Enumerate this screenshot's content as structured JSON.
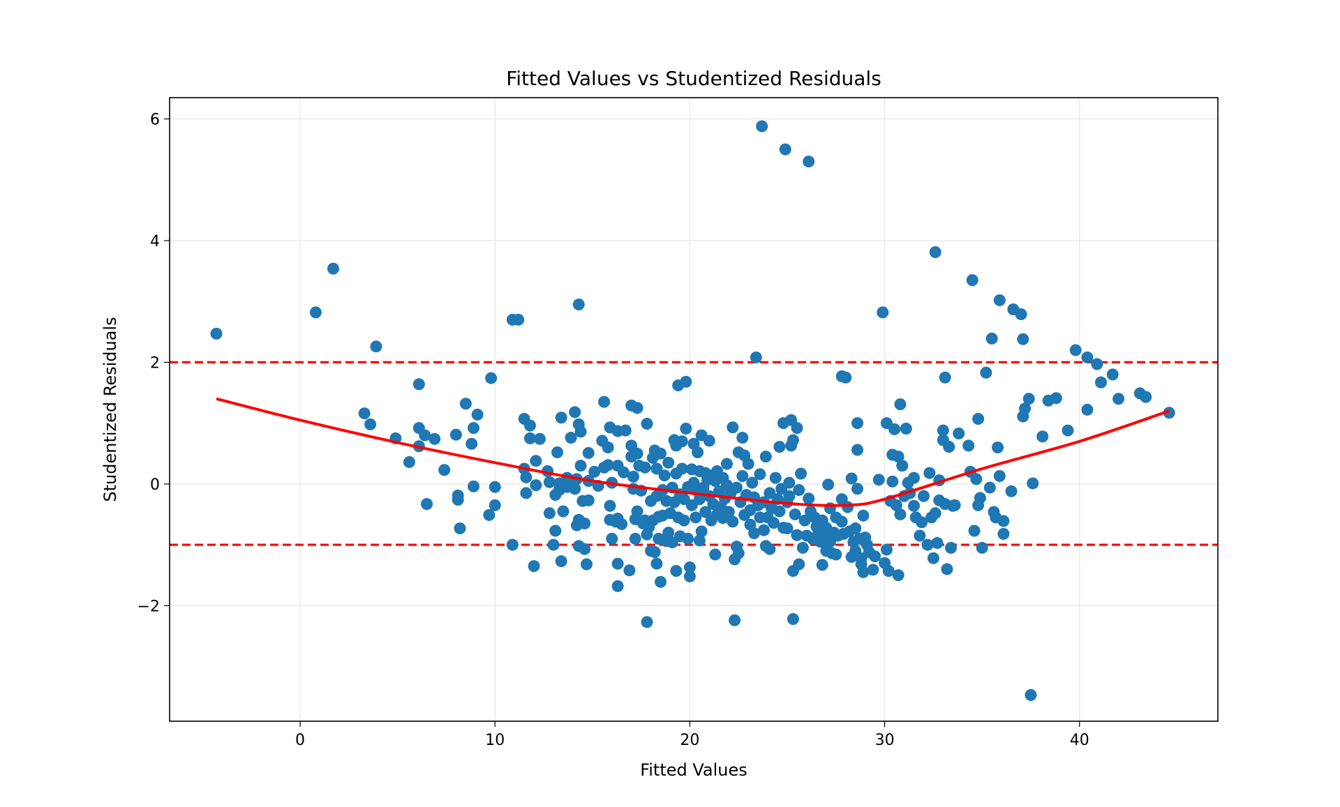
{
  "chart_data": {
    "type": "scatter",
    "title": "Fitted Values vs Studentized Residuals",
    "xlabel": "Fitted Values",
    "ylabel": "Studentized Residuals",
    "xlim": [
      -6.7,
      47.1
    ],
    "ylim": [
      -3.9,
      6.35
    ],
    "x_ticks": [
      0,
      10,
      20,
      30,
      40
    ],
    "y_ticks": [
      -2,
      0,
      2,
      4,
      6
    ],
    "x_tick_labels": [
      "0",
      "10",
      "20",
      "30",
      "40"
    ],
    "y_tick_labels": [
      "−2",
      "0",
      "2",
      "4",
      "6"
    ],
    "grid": true,
    "colors": {
      "points": "#1f77b4",
      "trend": "#ff0000",
      "reference": "#ff0000",
      "grid": "#e6e6e6"
    },
    "reference_lines": [
      {
        "axis": "y",
        "value": 2,
        "style": "dashed"
      },
      {
        "axis": "y",
        "value": -1,
        "style": "dashed"
      }
    ],
    "trend_line": {
      "x": [
        -4.3,
        0,
        5,
        10,
        15,
        20,
        25,
        28,
        30,
        35,
        40,
        44.6
      ],
      "y": [
        1.4,
        1.05,
        0.68,
        0.35,
        0.05,
        -0.15,
        -0.32,
        -0.35,
        -0.25,
        0.25,
        0.7,
        1.2
      ]
    },
    "points": [
      [
        -4.3,
        2.47
      ],
      [
        0.8,
        2.82
      ],
      [
        1.7,
        3.54
      ],
      [
        3.9,
        2.26
      ],
      [
        3.3,
        1.16
      ],
      [
        3.6,
        0.98
      ],
      [
        4.9,
        0.75
      ],
      [
        5.6,
        0.36
      ],
      [
        6.1,
        1.64
      ],
      [
        6.1,
        0.92
      ],
      [
        6.1,
        0.62
      ],
      [
        6.4,
        0.8
      ],
      [
        6.5,
        -0.33
      ],
      [
        6.9,
        0.74
      ],
      [
        7.4,
        0.23
      ],
      [
        8.0,
        0.81
      ],
      [
        8.1,
        -0.19
      ],
      [
        8.1,
        -0.26
      ],
      [
        8.2,
        -0.73
      ],
      [
        8.5,
        1.32
      ],
      [
        8.8,
        0.66
      ],
      [
        8.9,
        0.92
      ],
      [
        8.9,
        -0.04
      ],
      [
        9.1,
        1.14
      ],
      [
        9.7,
        -0.51
      ],
      [
        9.8,
        1.74
      ],
      [
        10.0,
        -0.05
      ],
      [
        10.0,
        -0.35
      ],
      [
        10.9,
        2.7
      ],
      [
        11.2,
        2.7
      ],
      [
        10.9,
        -1.0
      ],
      [
        11.5,
        1.07
      ],
      [
        11.5,
        0.25
      ],
      [
        11.6,
        0.11
      ],
      [
        11.6,
        -0.15
      ],
      [
        11.8,
        0.96
      ],
      [
        11.8,
        0.75
      ],
      [
        12.0,
        -1.35
      ],
      [
        12.1,
        0.38
      ],
      [
        12.1,
        -0.02
      ],
      [
        12.3,
        0.74
      ],
      [
        12.7,
        0.21
      ],
      [
        12.8,
        0.03
      ],
      [
        12.8,
        -0.48
      ],
      [
        13.0,
        -1.0
      ],
      [
        13.1,
        -0.77
      ],
      [
        13.2,
        0.52
      ],
      [
        13.1,
        -0.18
      ],
      [
        13.3,
        0.01
      ],
      [
        13.3,
        -0.1
      ],
      [
        13.4,
        1.09
      ],
      [
        13.4,
        -1.27
      ],
      [
        13.5,
        -0.45
      ],
      [
        13.7,
        -0.05
      ],
      [
        13.7,
        0.1
      ],
      [
        13.9,
        0.06
      ],
      [
        13.9,
        0.76
      ],
      [
        14.1,
        1.18
      ],
      [
        14.1,
        -0.08
      ],
      [
        14.2,
        0.08
      ],
      [
        14.2,
        -0.68
      ],
      [
        14.3,
        2.95
      ],
      [
        14.3,
        -0.59
      ],
      [
        14.3,
        0.98
      ],
      [
        14.3,
        -1.02
      ],
      [
        14.4,
        0.3
      ],
      [
        14.4,
        0.86
      ],
      [
        14.5,
        -0.28
      ],
      [
        14.6,
        -0.65
      ],
      [
        14.6,
        -1.07
      ],
      [
        14.7,
        -1.32
      ],
      [
        14.8,
        -0.27
      ],
      [
        14.8,
        0.51
      ],
      [
        14.8,
        0.05
      ],
      [
        15.1,
        0.2
      ],
      [
        15.3,
        -0.03
      ],
      [
        15.5,
        0.71
      ],
      [
        15.6,
        1.35
      ],
      [
        15.6,
        0.27
      ],
      [
        15.8,
        0.6
      ],
      [
        15.8,
        0.31
      ],
      [
        15.9,
        0.93
      ],
      [
        15.9,
        -0.59
      ],
      [
        15.9,
        -0.36
      ],
      [
        16.0,
        0.02
      ],
      [
        16.0,
        -0.9
      ],
      [
        16.2,
        -0.62
      ],
      [
        16.3,
        0.87
      ],
      [
        16.3,
        0.3
      ],
      [
        16.3,
        -0.57
      ],
      [
        16.3,
        -1.31
      ],
      [
        16.3,
        -1.68
      ],
      [
        16.5,
        -0.66
      ],
      [
        16.6,
        0.19
      ],
      [
        16.7,
        0.88
      ],
      [
        16.9,
        -1.42
      ],
      [
        17.0,
        1.29
      ],
      [
        17.0,
        0.63
      ],
      [
        17.0,
        0.45
      ],
      [
        17.1,
        0.12
      ],
      [
        17.1,
        -0.08
      ],
      [
        17.2,
        -0.58
      ],
      [
        17.2,
        -0.9
      ],
      [
        17.3,
        1.25
      ],
      [
        17.3,
        0.5
      ],
      [
        17.3,
        -0.45
      ],
      [
        17.4,
        0.3
      ],
      [
        17.5,
        -0.11
      ],
      [
        17.6,
        -0.65
      ],
      [
        17.7,
        -0.6
      ],
      [
        17.7,
        0.27
      ],
      [
        17.8,
        0.99
      ],
      [
        17.8,
        -0.83
      ],
      [
        17.8,
        -2.27
      ],
      [
        17.9,
        -0.71
      ],
      [
        18.0,
        -1.1
      ],
      [
        18.0,
        -0.28
      ],
      [
        18.1,
        0.43
      ],
      [
        18.1,
        -0.6
      ],
      [
        18.2,
        0.55
      ],
      [
        18.2,
        -1.12
      ],
      [
        18.3,
        0.25
      ],
      [
        18.3,
        -0.2
      ],
      [
        18.3,
        -1.31
      ],
      [
        18.4,
        -0.54
      ],
      [
        18.4,
        -0.9
      ],
      [
        18.5,
        -1.61
      ],
      [
        18.5,
        0.5
      ],
      [
        18.6,
        -0.1
      ],
      [
        18.6,
        -0.52
      ],
      [
        18.7,
        0.14
      ],
      [
        18.8,
        -0.94
      ],
      [
        18.8,
        -0.28
      ],
      [
        18.9,
        -0.8
      ],
      [
        18.9,
        0.35
      ],
      [
        19.0,
        -0.48
      ],
      [
        19.1,
        -0.06
      ],
      [
        19.1,
        -0.96
      ],
      [
        19.2,
        0.72
      ],
      [
        19.2,
        -0.3
      ],
      [
        19.3,
        -1.43
      ],
      [
        19.3,
        0.63
      ],
      [
        19.3,
        0.17
      ],
      [
        19.4,
        -0.55
      ],
      [
        19.4,
        1.62
      ],
      [
        19.5,
        -0.17
      ],
      [
        19.5,
        -0.86
      ],
      [
        19.6,
        0.7
      ],
      [
        19.6,
        0.25
      ],
      [
        19.7,
        -0.6
      ],
      [
        19.7,
        -0.25
      ],
      [
        19.8,
        1.68
      ],
      [
        19.8,
        0.91
      ],
      [
        19.9,
        -0.05
      ],
      [
        19.9,
        -0.9
      ],
      [
        20.0,
        -1.37
      ],
      [
        20.0,
        -1.52
      ],
      [
        20.1,
        0.24
      ],
      [
        20.1,
        -0.35
      ],
      [
        20.2,
        0.66
      ],
      [
        20.2,
        0.02
      ],
      [
        20.3,
        -0.1
      ],
      [
        20.3,
        -0.55
      ],
      [
        20.4,
        0.52
      ],
      [
        20.5,
        -0.25
      ],
      [
        20.5,
        -0.93
      ],
      [
        20.5,
        0.21
      ],
      [
        20.6,
        0.8
      ],
      [
        20.6,
        -0.78
      ],
      [
        20.7,
        -0.06
      ],
      [
        20.8,
        0.18
      ],
      [
        20.8,
        -0.46
      ],
      [
        20.9,
        0.07
      ],
      [
        21.0,
        -0.2
      ],
      [
        21.0,
        0.71
      ],
      [
        21.1,
        0.14
      ],
      [
        21.1,
        -0.6
      ],
      [
        21.2,
        -0.33
      ],
      [
        21.3,
        0.05
      ],
      [
        21.3,
        -1.16
      ],
      [
        21.4,
        -0.5
      ],
      [
        21.4,
        0.21
      ],
      [
        21.5,
        -0.12
      ],
      [
        21.6,
        -0.38
      ],
      [
        21.7,
        0.1
      ],
      [
        21.7,
        -0.56
      ],
      [
        21.8,
        -0.24
      ],
      [
        21.9,
        0.33
      ],
      [
        21.9,
        -0.02
      ],
      [
        22.0,
        -0.46
      ],
      [
        22.1,
        -0.15
      ],
      [
        22.2,
        0.93
      ],
      [
        22.2,
        -0.62
      ],
      [
        22.3,
        -1.24
      ],
      [
        22.3,
        -2.24
      ],
      [
        22.4,
        -0.06
      ],
      [
        22.4,
        -1.03
      ],
      [
        22.5,
        0.52
      ],
      [
        22.5,
        -1.14
      ],
      [
        22.6,
        -0.3
      ],
      [
        22.7,
        0.13
      ],
      [
        22.7,
        0.76
      ],
      [
        22.8,
        -0.51
      ],
      [
        22.8,
        0.47
      ],
      [
        22.9,
        -0.18
      ],
      [
        23.0,
        0.33
      ],
      [
        23.1,
        -0.43
      ],
      [
        23.1,
        -0.67
      ],
      [
        23.2,
        0.02
      ],
      [
        23.3,
        -0.22
      ],
      [
        23.3,
        -0.81
      ],
      [
        23.4,
        2.08
      ],
      [
        23.5,
        -0.35
      ],
      [
        23.6,
        0.16
      ],
      [
        23.6,
        -0.55
      ],
      [
        23.7,
        5.88
      ],
      [
        23.8,
        -0.76
      ],
      [
        23.8,
        -0.3
      ],
      [
        23.9,
        -1.02
      ],
      [
        23.9,
        0.45
      ],
      [
        24.0,
        -0.55
      ],
      [
        24.1,
        -0.15
      ],
      [
        24.1,
        -1.07
      ],
      [
        24.2,
        -0.4
      ],
      [
        24.3,
        -0.64
      ],
      [
        24.4,
        0.1
      ],
      [
        24.5,
        -0.25
      ],
      [
        24.6,
        0.61
      ],
      [
        24.6,
        -0.45
      ],
      [
        24.7,
        -0.08
      ],
      [
        24.8,
        -0.72
      ],
      [
        24.8,
        1.0
      ],
      [
        24.9,
        5.5
      ],
      [
        25.0,
        -0.3
      ],
      [
        25.0,
        -0.73
      ],
      [
        25.1,
        0.02
      ],
      [
        25.1,
        -0.2
      ],
      [
        25.2,
        1.05
      ],
      [
        25.2,
        0.63
      ],
      [
        25.3,
        -1.43
      ],
      [
        25.3,
        -2.22
      ],
      [
        25.3,
        0.72
      ],
      [
        25.4,
        -0.5
      ],
      [
        25.5,
        -0.84
      ],
      [
        25.5,
        0.92
      ],
      [
        25.6,
        -1.32
      ],
      [
        25.6,
        -0.1
      ],
      [
        25.7,
        0.17
      ],
      [
        25.8,
        -1.05
      ],
      [
        25.9,
        -0.6
      ],
      [
        26.0,
        -0.85
      ],
      [
        26.1,
        5.3
      ],
      [
        26.1,
        -0.24
      ],
      [
        26.2,
        -0.45
      ],
      [
        26.3,
        -0.9
      ],
      [
        26.4,
        -0.55
      ],
      [
        26.5,
        -0.7
      ],
      [
        26.6,
        -0.79
      ],
      [
        26.7,
        -0.95
      ],
      [
        26.8,
        -1.33
      ],
      [
        26.8,
        -0.6
      ],
      [
        26.9,
        -0.85
      ],
      [
        27.0,
        -1.1
      ],
      [
        27.0,
        -0.72
      ],
      [
        27.1,
        -0.01
      ],
      [
        27.2,
        -0.4
      ],
      [
        27.2,
        -0.95
      ],
      [
        27.3,
        -1.14
      ],
      [
        27.4,
        -0.8
      ],
      [
        27.5,
        -0.55
      ],
      [
        27.5,
        -1.16
      ],
      [
        27.6,
        -0.85
      ],
      [
        27.8,
        1.77
      ],
      [
        27.8,
        -0.25
      ],
      [
        27.8,
        -0.62
      ],
      [
        27.9,
        -0.82
      ],
      [
        28.0,
        1.75
      ],
      [
        28.1,
        -0.38
      ],
      [
        28.2,
        -0.78
      ],
      [
        28.3,
        0.09
      ],
      [
        28.3,
        -1.2
      ],
      [
        28.4,
        -0.95
      ],
      [
        28.5,
        -1.1
      ],
      [
        28.5,
        -0.73
      ],
      [
        28.6,
        -0.08
      ],
      [
        28.6,
        0.56
      ],
      [
        28.6,
        1.0
      ],
      [
        28.7,
        -0.9
      ],
      [
        28.8,
        -1.22
      ],
      [
        28.8,
        -1.32
      ],
      [
        28.9,
        -0.52
      ],
      [
        28.9,
        -1.45
      ],
      [
        29.0,
        -0.88
      ],
      [
        29.1,
        -1.0
      ],
      [
        29.2,
        -1.12
      ],
      [
        29.4,
        -1.41
      ],
      [
        29.5,
        -1.19
      ],
      [
        29.7,
        0.07
      ],
      [
        29.9,
        2.82
      ],
      [
        30.0,
        -1.3
      ],
      [
        30.1,
        1.0
      ],
      [
        30.1,
        -1.08
      ],
      [
        30.2,
        -1.43
      ],
      [
        30.3,
        -0.28
      ],
      [
        30.4,
        0.04
      ],
      [
        30.4,
        0.48
      ],
      [
        30.5,
        0.9
      ],
      [
        30.6,
        -0.35
      ],
      [
        30.7,
        0.45
      ],
      [
        30.7,
        -1.5
      ],
      [
        30.8,
        1.31
      ],
      [
        30.8,
        -0.5
      ],
      [
        30.9,
        0.3
      ],
      [
        31.0,
        -0.2
      ],
      [
        31.1,
        0.91
      ],
      [
        31.2,
        0.02
      ],
      [
        31.3,
        -0.15
      ],
      [
        31.5,
        0.1
      ],
      [
        31.5,
        -0.36
      ],
      [
        31.6,
        -0.55
      ],
      [
        31.8,
        -0.85
      ],
      [
        31.9,
        -0.63
      ],
      [
        32.0,
        -0.2
      ],
      [
        32.2,
        -1.0
      ],
      [
        32.3,
        0.18
      ],
      [
        32.4,
        -0.55
      ],
      [
        32.5,
        -1.22
      ],
      [
        32.6,
        -0.48
      ],
      [
        32.6,
        3.81
      ],
      [
        32.7,
        -0.97
      ],
      [
        32.8,
        -0.27
      ],
      [
        32.8,
        0.06
      ],
      [
        33.0,
        0.72
      ],
      [
        33.0,
        0.88
      ],
      [
        33.1,
        1.75
      ],
      [
        33.1,
        -0.33
      ],
      [
        33.2,
        -1.4
      ],
      [
        33.3,
        0.61
      ],
      [
        33.4,
        -1.05
      ],
      [
        33.5,
        -0.36
      ],
      [
        33.6,
        -0.35
      ],
      [
        33.8,
        0.83
      ],
      [
        34.3,
        0.63
      ],
      [
        34.4,
        0.2
      ],
      [
        34.5,
        3.35
      ],
      [
        34.6,
        -0.77
      ],
      [
        34.7,
        0.08
      ],
      [
        34.8,
        1.07
      ],
      [
        34.8,
        -0.35
      ],
      [
        34.9,
        -0.23
      ],
      [
        35.0,
        -1.05
      ],
      [
        35.2,
        1.83
      ],
      [
        35.4,
        -0.06
      ],
      [
        35.5,
        2.39
      ],
      [
        35.6,
        -0.46
      ],
      [
        35.7,
        -0.55
      ],
      [
        35.8,
        0.6
      ],
      [
        35.9,
        0.13
      ],
      [
        35.9,
        3.02
      ],
      [
        36.1,
        -0.61
      ],
      [
        36.1,
        -0.82
      ],
      [
        36.5,
        -0.12
      ],
      [
        36.6,
        2.87
      ],
      [
        37.0,
        2.79
      ],
      [
        37.1,
        1.11
      ],
      [
        37.1,
        2.38
      ],
      [
        37.2,
        1.24
      ],
      [
        37.4,
        1.4
      ],
      [
        37.5,
        -3.47
      ],
      [
        37.6,
        0.01
      ],
      [
        38.1,
        0.78
      ],
      [
        38.4,
        1.37
      ],
      [
        38.8,
        1.41
      ],
      [
        39.4,
        0.88
      ],
      [
        39.8,
        2.2
      ],
      [
        40.4,
        1.22
      ],
      [
        40.4,
        2.08
      ],
      [
        40.9,
        1.97
      ],
      [
        41.1,
        1.67
      ],
      [
        41.7,
        1.8
      ],
      [
        42.0,
        1.4
      ],
      [
        43.1,
        1.49
      ],
      [
        43.4,
        1.43
      ],
      [
        44.6,
        1.17
      ]
    ]
  }
}
